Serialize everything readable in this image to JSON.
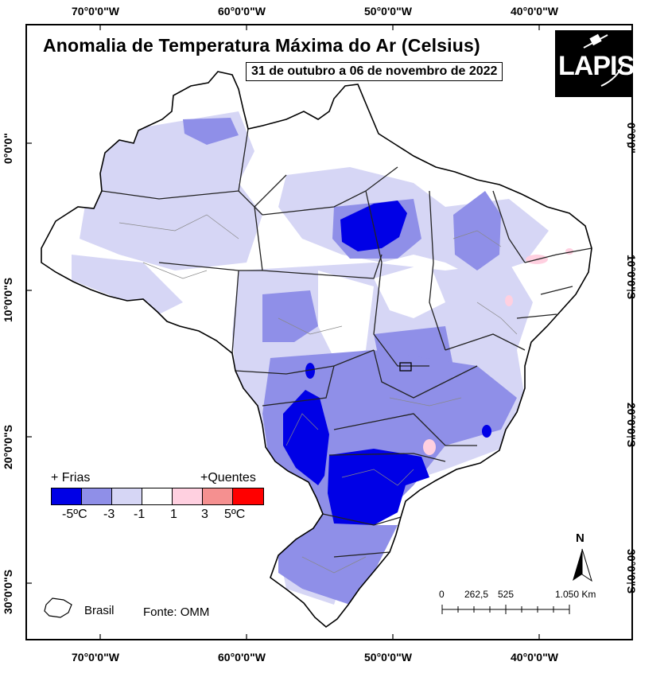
{
  "title": "Anomalia de Temperatura Máxima do Ar (Celsius)",
  "subtitle": "31 de outubro a 06 de novembro de 2022",
  "logo": "LAPIS",
  "longitudes": [
    "70°0'0\"W",
    "60°0'0\"W",
    "50°0'0\"W",
    "40°0'0\"W"
  ],
  "latitudes": [
    "0°0'0\"",
    "10°0'0\"S",
    "20°0'0\"S",
    "30°0'0\"S"
  ],
  "legend": {
    "cold_label": "+ Frias",
    "hot_label": "+Quentes",
    "colors": [
      "#0000e6",
      "#8f8fe8",
      "#d6d6f5",
      "#ffffff",
      "#ffd0e0",
      "#f59090",
      "#ff0000"
    ],
    "ticks": [
      "-5ºC",
      "-3",
      "-1",
      "1",
      "3",
      "5ºC"
    ]
  },
  "inset_label": "Brasil",
  "source": "Fonte: OMM",
  "scale": {
    "labels": [
      "0",
      "262,5",
      "525",
      "1.050 Km"
    ]
  },
  "north": "N"
}
